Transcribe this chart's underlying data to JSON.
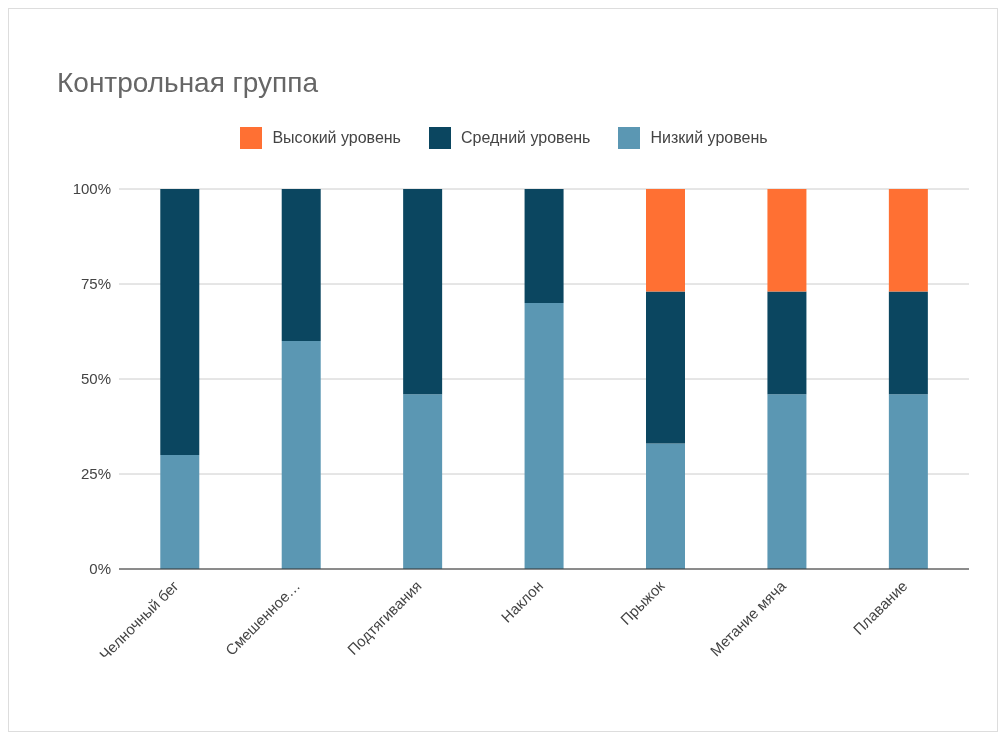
{
  "chart_data": {
    "type": "bar",
    "title": "Контрольная группа",
    "stacked": true,
    "categories": [
      "Челночный бег",
      "Смешенное…",
      "Подтягивания",
      "Наклон",
      "Прыжок",
      "Метание мяча",
      "Плавание"
    ],
    "series": [
      {
        "name": "Низкий уровень",
        "color": "#5b97b3",
        "values": [
          30,
          60,
          46,
          70,
          33,
          46,
          46
        ]
      },
      {
        "name": "Средний уровень",
        "color": "#0b4660",
        "values": [
          70,
          40,
          54,
          30,
          40,
          27,
          27
        ]
      },
      {
        "name": "Высокий уровень",
        "color": "#ff7033",
        "values": [
          0,
          0,
          0,
          0,
          27,
          27,
          27
        ]
      }
    ],
    "ylim": [
      0,
      100
    ],
    "yticks": [
      {
        "value": 0,
        "label": "0%"
      },
      {
        "value": 25,
        "label": "25%"
      },
      {
        "value": 50,
        "label": "50%"
      },
      {
        "value": 75,
        "label": "75%"
      },
      {
        "value": 100,
        "label": "100%"
      }
    ],
    "grid": "y",
    "legend": "top"
  }
}
